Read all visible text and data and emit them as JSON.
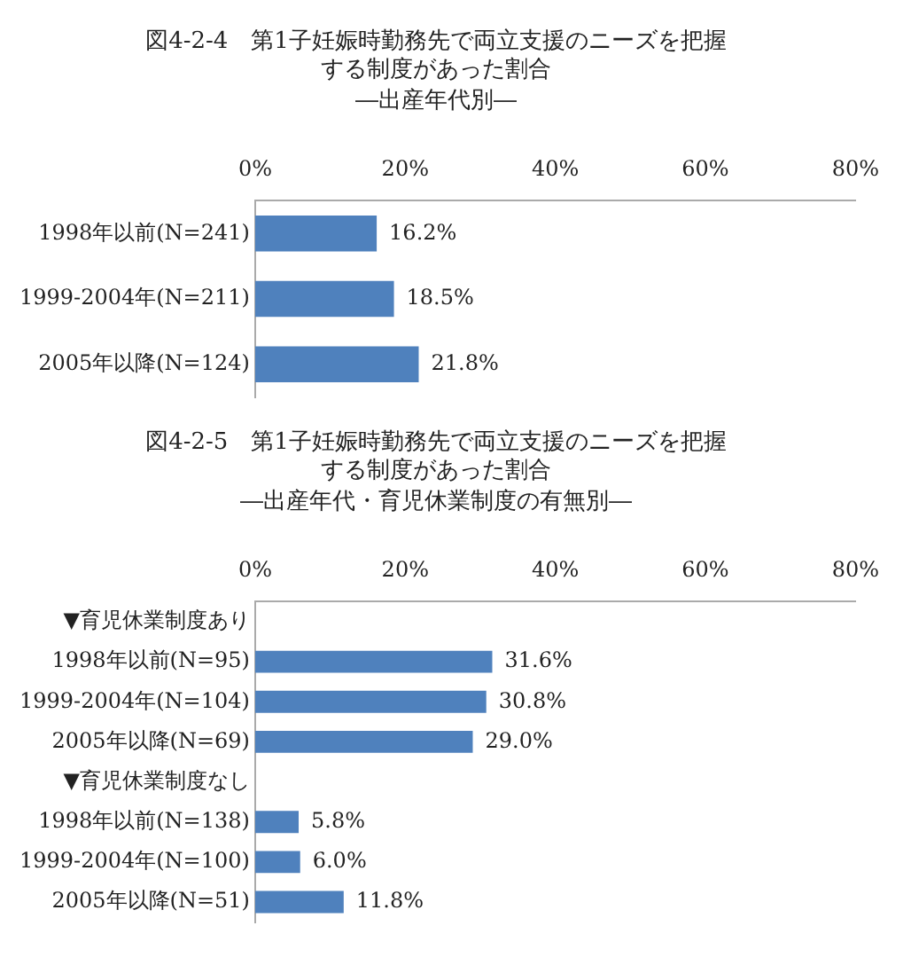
{
  "chart_data": [
    {
      "type": "bar",
      "orientation": "horizontal",
      "title": "図4-2-4　第1子妊娠時勤務先で両立支援のニーズを把握する制度があった割合",
      "subtitle": "―出産年代別―",
      "categories": [
        "1998年以前(N=241)",
        "1999-2004年(N=211)",
        "2005年以降(N=124)"
      ],
      "values": [
        16.2,
        18.5,
        21.8
      ],
      "value_labels": [
        "16.2%",
        "18.5%",
        "21.8%"
      ],
      "color": "#4f81bd",
      "xlim": [
        0,
        80
      ],
      "xticks": [
        {
          "value": 0,
          "label": "0%"
        },
        {
          "value": 20,
          "label": "20%"
        },
        {
          "value": 40,
          "label": "40%"
        },
        {
          "value": 60,
          "label": "60%"
        },
        {
          "value": 80,
          "label": "80%"
        }
      ],
      "grid": false,
      "legend": false
    },
    {
      "type": "bar",
      "orientation": "horizontal",
      "title": "図4-2-5　第1子妊娠時勤務先で両立支援のニーズを把握する制度があった割合",
      "subtitle": "―出産年代・育児休業制度の有無別―",
      "categories": [
        "▼育児休業制度あり",
        "1998年以前(N=95)",
        "1999-2004年(N=104)",
        "2005年以降(N=69)",
        "▼育児休業制度なし",
        "1998年以前(N=138)",
        "1999-2004年(N=100)",
        "2005年以降(N=51)"
      ],
      "values": [
        null,
        31.6,
        30.8,
        29.0,
        null,
        5.8,
        6.0,
        11.8
      ],
      "value_labels": [
        null,
        "31.6%",
        "30.8%",
        "29.0%",
        null,
        "5.8%",
        "6.0%",
        "11.8%"
      ],
      "color": "#4f81bd",
      "xlim": [
        0,
        80
      ],
      "xticks": [
        {
          "value": 0,
          "label": "0%"
        },
        {
          "value": 20,
          "label": "20%"
        },
        {
          "value": 40,
          "label": "40%"
        },
        {
          "value": 60,
          "label": "60%"
        },
        {
          "value": 80,
          "label": "80%"
        }
      ],
      "grid": false,
      "legend": false
    }
  ]
}
